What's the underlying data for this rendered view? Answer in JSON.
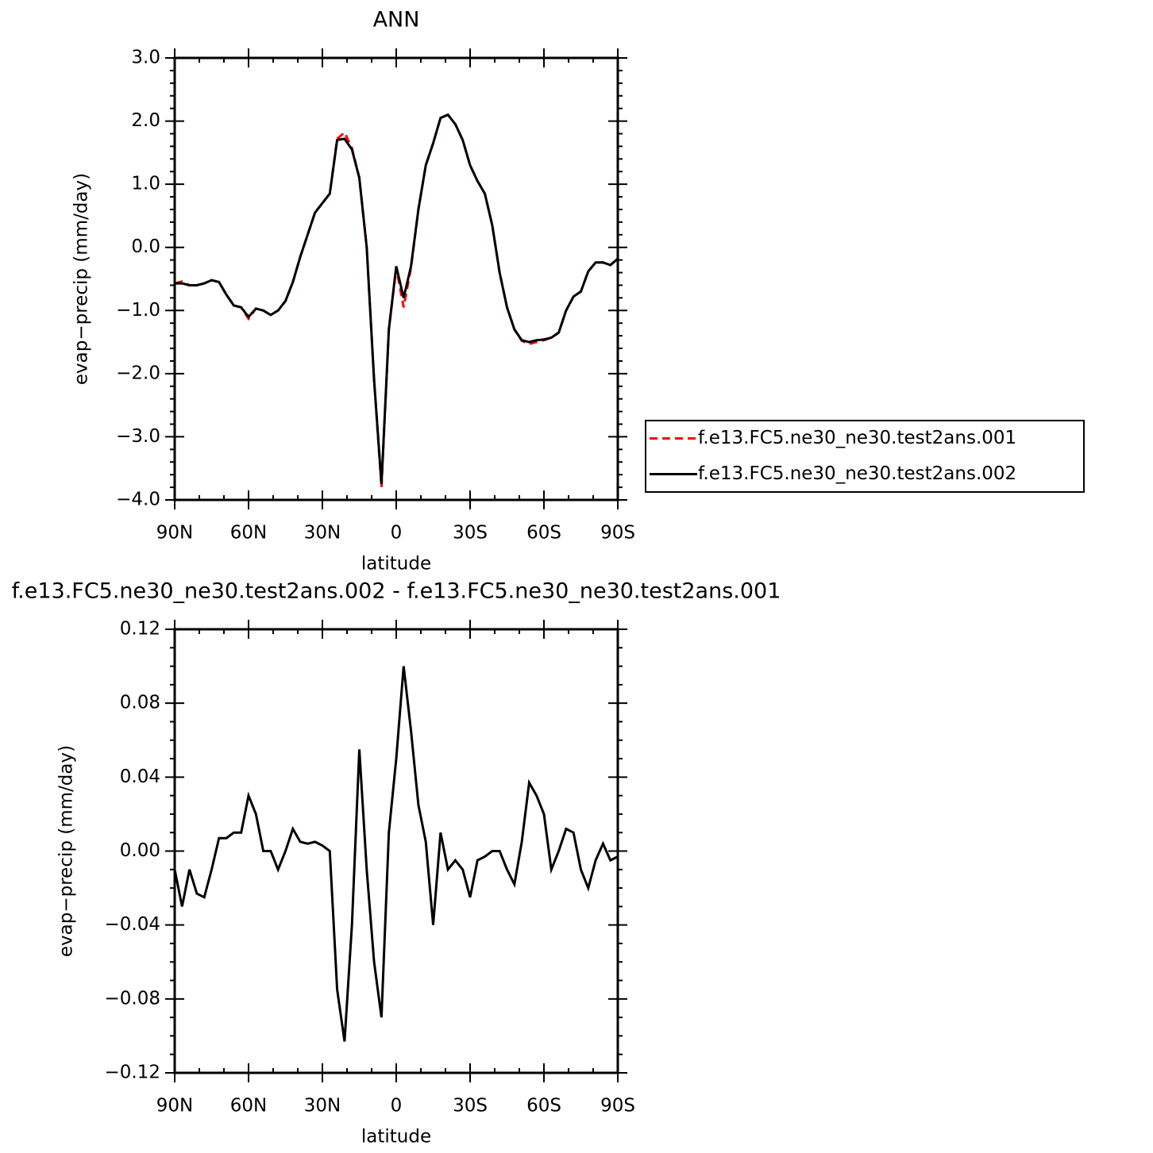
{
  "chart_data": [
    {
      "type": "line",
      "title": "ANN",
      "xlabel": "latitude",
      "ylabel": "evap−precip (mm/day)",
      "x": [
        90,
        87,
        84,
        81,
        78,
        75,
        72,
        69,
        66,
        63,
        60,
        57,
        54,
        51,
        48,
        45,
        42,
        39,
        36,
        33,
        30,
        27,
        24,
        21,
        18,
        15,
        12,
        9,
        6,
        3,
        0,
        -3,
        -6,
        -9,
        -12,
        -15,
        -18,
        -21,
        -24,
        -27,
        -30,
        -33,
        -36,
        -39,
        -42,
        -45,
        -48,
        -51,
        -54,
        -57,
        -60,
        -63,
        -66,
        -69,
        -72,
        -75,
        -78,
        -81,
        -84,
        -87,
        -90
      ],
      "series": [
        {
          "name": "f.e13.FC5.ne30_ne30.test2ans.001",
          "color": "#ff0000",
          "line_style": "dashed",
          "values": [
            -0.57,
            -0.54,
            -0.6,
            -0.6,
            -0.57,
            -0.52,
            -0.55,
            -0.75,
            -0.92,
            -0.95,
            -1.13,
            -0.97,
            -1.0,
            -1.07,
            -1.0,
            -0.85,
            -0.55,
            -0.15,
            0.2,
            0.55,
            0.7,
            0.85,
            1.72,
            1.82,
            1.57,
            1.1,
            0.0,
            -2.1,
            -3.8,
            -1.3,
            -0.32,
            -0.95,
            -0.32,
            0.6,
            1.3,
            1.65,
            2.05,
            2.1,
            1.95,
            1.7,
            1.3,
            1.05,
            0.85,
            0.35,
            -0.4,
            -0.95,
            -1.3,
            -1.48,
            -1.53,
            -1.5,
            -1.47,
            -1.43,
            -1.35,
            -1.0,
            -0.78,
            -0.7,
            -0.38,
            -0.24,
            -0.24,
            -0.28,
            -0.18
          ]
        },
        {
          "name": "f.e13.FC5.ne30_ne30.test2ans.002",
          "color": "#000000",
          "line_style": "solid",
          "values": [
            -0.57,
            -0.57,
            -0.6,
            -0.6,
            -0.57,
            -0.52,
            -0.55,
            -0.75,
            -0.92,
            -0.95,
            -1.1,
            -0.97,
            -1.0,
            -1.07,
            -1.0,
            -0.85,
            -0.55,
            -0.15,
            0.2,
            0.55,
            0.7,
            0.85,
            1.7,
            1.72,
            1.55,
            1.1,
            0.0,
            -2.1,
            -3.75,
            -1.3,
            -0.3,
            -0.8,
            -0.3,
            0.6,
            1.3,
            1.65,
            2.05,
            2.1,
            1.95,
            1.7,
            1.3,
            1.05,
            0.85,
            0.35,
            -0.4,
            -0.95,
            -1.3,
            -1.47,
            -1.5,
            -1.47,
            -1.46,
            -1.43,
            -1.35,
            -1.0,
            -0.78,
            -0.7,
            -0.38,
            -0.24,
            -0.24,
            -0.28,
            -0.18
          ]
        }
      ],
      "xlim": [
        90,
        -90
      ],
      "xticks": [
        {
          "value": 90,
          "label": "90N"
        },
        {
          "value": 60,
          "label": "60N"
        },
        {
          "value": 30,
          "label": "30N"
        },
        0,
        {
          "value": -30,
          "label": "30S"
        },
        {
          "value": -60,
          "label": "60S"
        },
        {
          "value": -90,
          "label": "90S"
        }
      ],
      "ylim": [
        -4,
        3
      ],
      "yticks": [
        {
          "value": 3,
          "label": "3.0"
        },
        {
          "value": 2,
          "label": "2.0"
        },
        {
          "value": 1,
          "label": "1.0"
        },
        {
          "value": 0,
          "label": "0.0"
        },
        {
          "value": -1,
          "label": "−1.0"
        },
        {
          "value": -2,
          "label": "−2.0"
        },
        {
          "value": -3,
          "label": "−3.0"
        },
        {
          "value": -4,
          "label": "−4.0"
        }
      ],
      "legend": "right",
      "grid": false
    },
    {
      "type": "line",
      "title": "f.e13.FC5.ne30_ne30.test2ans.002 - f.e13.FC5.ne30_ne30.test2ans.001",
      "xlabel": "latitude",
      "ylabel": "evap−precip (mm/day)",
      "x": [
        90,
        87,
        84,
        81,
        78,
        75,
        72,
        69,
        66,
        63,
        60,
        57,
        54,
        51,
        48,
        45,
        42,
        39,
        36,
        33,
        30,
        27,
        24,
        21,
        18,
        15,
        12,
        9,
        6,
        3,
        0,
        -3,
        -6,
        -9,
        -12,
        -15,
        -18,
        -21,
        -24,
        -27,
        -30,
        -33,
        -36,
        -39,
        -42,
        -45,
        -48,
        -51,
        -54,
        -57,
        -60,
        -63,
        -66,
        -69,
        -72,
        -75,
        -78,
        -81,
        -84,
        -87,
        -90
      ],
      "series": [
        {
          "color": "#000000",
          "line_style": "solid",
          "values": [
            -0.01,
            -0.03,
            -0.01,
            -0.023,
            -0.025,
            -0.01,
            0.007,
            0.007,
            0.01,
            0.01,
            0.03,
            0.02,
            0.0,
            0.0,
            -0.01,
            0.0,
            0.012,
            0.005,
            0.004,
            0.005,
            0.003,
            0.0,
            -0.075,
            -0.103,
            -0.04,
            0.055,
            -0.01,
            -0.06,
            -0.09,
            0.01,
            0.05,
            0.1,
            0.065,
            0.025,
            0.005,
            -0.04,
            0.01,
            -0.01,
            -0.005,
            -0.01,
            -0.025,
            -0.005,
            -0.003,
            0.0,
            0.0,
            -0.01,
            -0.018,
            0.005,
            0.037,
            0.03,
            0.02,
            -0.01,
            0.0,
            0.012,
            0.01,
            -0.01,
            -0.02,
            -0.005,
            0.004,
            -0.005,
            -0.003
          ]
        }
      ],
      "xlim": [
        90,
        -90
      ],
      "xticks": [
        {
          "value": 90,
          "label": "90N"
        },
        {
          "value": 60,
          "label": "60N"
        },
        {
          "value": 30,
          "label": "30N"
        },
        0,
        {
          "value": -30,
          "label": "30S"
        },
        {
          "value": -60,
          "label": "60S"
        },
        {
          "value": -90,
          "label": "90S"
        }
      ],
      "ylim": [
        -0.12,
        0.12
      ],
      "yticks": [
        0.12,
        0.08,
        0.04,
        {
          "value": 0,
          "label": "0.00"
        },
        {
          "value": -0.04,
          "label": "−0.04"
        },
        {
          "value": -0.08,
          "label": "−0.08"
        },
        {
          "value": -0.12,
          "label": "−0.12"
        }
      ],
      "grid": false
    }
  ]
}
